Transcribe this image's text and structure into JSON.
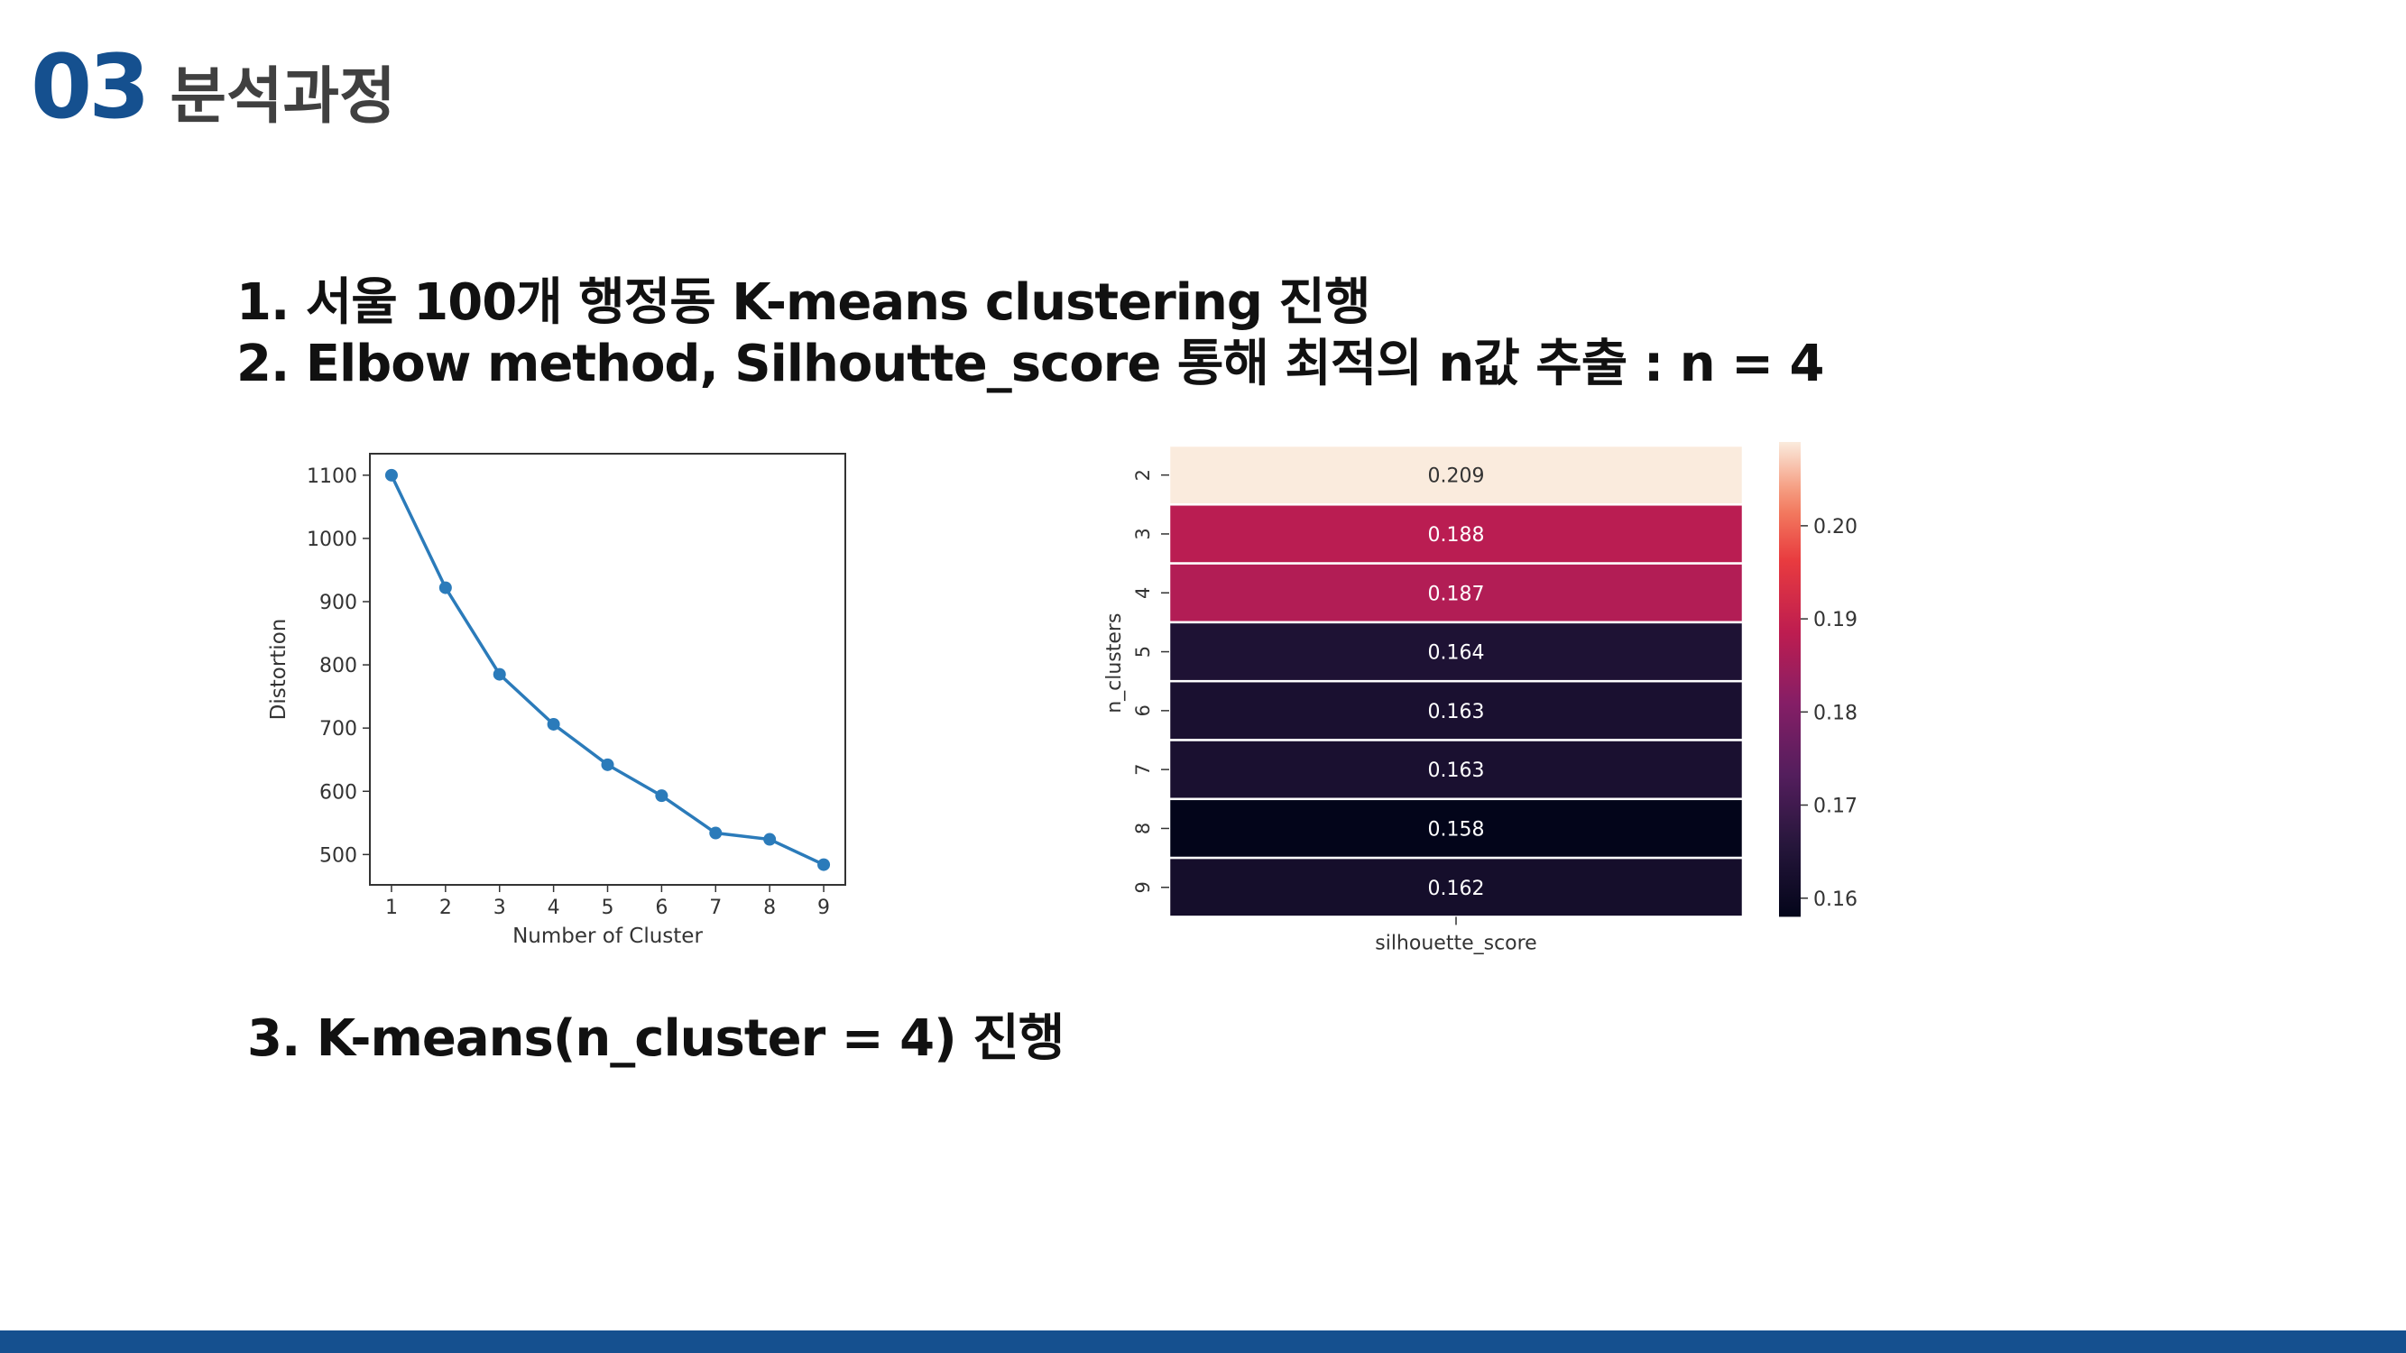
{
  "header": {
    "number": "03",
    "title": "분석과정"
  },
  "points": [
    "1. 서울 100개 행정동 K-means clustering 진행",
    "2. Elbow method, Silhoutte_score 통해 최적의 n값 추출 : n = 4",
    "3. K-means(n_cluster = 4) 진행"
  ],
  "colors": {
    "accent": "#15508f",
    "line": "#2b7bba"
  },
  "chart_data": [
    {
      "type": "line",
      "title": "",
      "xlabel": "Number of Cluster",
      "ylabel": "Distortion",
      "x": [
        1,
        2,
        3,
        4,
        5,
        6,
        7,
        8,
        9
      ],
      "series": [
        {
          "values": [
            1100,
            922,
            785,
            706,
            642,
            593,
            534,
            524,
            484
          ]
        }
      ],
      "xticks": [
        1,
        2,
        3,
        4,
        5,
        6,
        7,
        8,
        9
      ],
      "yticks": [
        500,
        600,
        700,
        800,
        900,
        1000,
        1100
      ],
      "xlim": [
        0.6,
        9.4
      ],
      "ylim": [
        452,
        1134
      ],
      "grid": false
    },
    {
      "type": "heatmap",
      "title": "",
      "xlabel": "silhouette_score",
      "ylabel": "n_clusters",
      "rows": [
        "2",
        "3",
        "4",
        "5",
        "6",
        "7",
        "8",
        "9"
      ],
      "columns": [
        "silhouette_score"
      ],
      "values": [
        0.209,
        0.188,
        0.187,
        0.164,
        0.163,
        0.163,
        0.158,
        0.162
      ],
      "value_labels": [
        "0.209",
        "0.188",
        "0.187",
        "0.164",
        "0.163",
        "0.163",
        "0.158",
        "0.162"
      ],
      "color_range": [
        0.158,
        0.209
      ],
      "colorbar_ticks": [
        "0.20",
        "0.19",
        "0.18",
        "0.17",
        "0.16"
      ],
      "colorbar_tick_values": [
        0.2,
        0.19,
        0.18,
        0.17,
        0.16
      ],
      "colormap": "rocket"
    }
  ]
}
